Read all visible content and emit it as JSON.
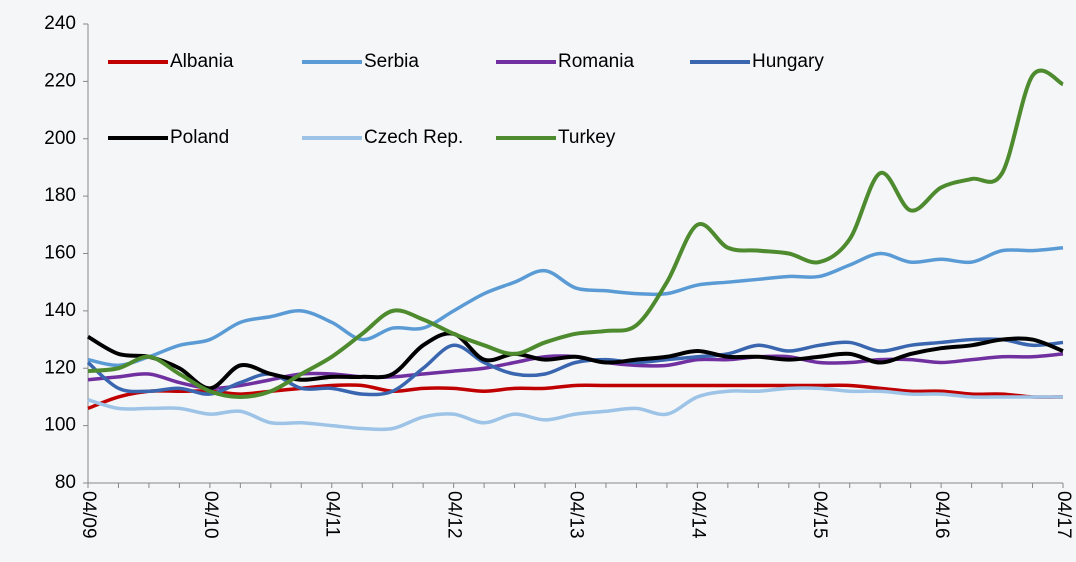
{
  "chart_data": {
    "type": "line",
    "categories": [
      "04/09",
      null,
      null,
      null,
      "04/10",
      null,
      null,
      null,
      "04/11",
      null,
      null,
      null,
      "04/12",
      null,
      null,
      null,
      "04/13",
      null,
      null,
      null,
      "04/14",
      null,
      null,
      null,
      "04/15",
      null,
      null,
      null,
      "04/16",
      null,
      null,
      null,
      "04/17"
    ],
    "series": [
      {
        "name": "Albania",
        "color": "#c00000",
        "values": [
          106,
          110,
          112,
          112,
          112,
          111,
          112,
          113,
          114,
          114,
          112,
          113,
          113,
          112,
          113,
          113,
          114,
          114,
          114,
          114,
          114,
          114,
          114,
          114,
          114,
          114,
          113,
          112,
          112,
          111,
          111,
          110,
          110
        ]
      },
      {
        "name": "Serbia",
        "color": "#5b9bd5",
        "values": [
          123,
          121,
          124,
          128,
          130,
          136,
          138,
          140,
          136,
          130,
          134,
          134,
          140,
          146,
          150,
          154,
          148,
          147,
          146,
          146,
          149,
          150,
          151,
          152,
          152,
          156,
          160,
          157,
          158,
          157,
          161,
          161,
          162
        ]
      },
      {
        "name": "Romania",
        "color": "#7030a0",
        "values": [
          116,
          117,
          118,
          115,
          113,
          114,
          116,
          118,
          118,
          117,
          117,
          118,
          119,
          120,
          122,
          124,
          124,
          122,
          121,
          121,
          123,
          123,
          124,
          124,
          122,
          122,
          123,
          123,
          122,
          123,
          124,
          124,
          125
        ]
      },
      {
        "name": "Hungary",
        "color": "#3a66b0",
        "values": [
          122,
          113,
          112,
          113,
          111,
          115,
          118,
          113,
          113,
          111,
          112,
          120,
          128,
          122,
          118,
          118,
          122,
          123,
          122,
          123,
          124,
          125,
          128,
          126,
          128,
          129,
          126,
          128,
          129,
          130,
          130,
          128,
          129
        ]
      },
      {
        "name": "Poland",
        "color": "#000000",
        "values": [
          131,
          125,
          124,
          120,
          113,
          121,
          118,
          116,
          117,
          117,
          118,
          128,
          132,
          123,
          125,
          123,
          124,
          122,
          123,
          124,
          126,
          124,
          124,
          123,
          124,
          125,
          122,
          125,
          127,
          128,
          130,
          130,
          126
        ]
      },
      {
        "name": "Czech Rep.",
        "color": "#9dc3e6",
        "values": [
          109,
          106,
          106,
          106,
          104,
          105,
          101,
          101,
          100,
          99,
          99,
          103,
          104,
          101,
          104,
          102,
          104,
          105,
          106,
          104,
          110,
          112,
          112,
          113,
          113,
          112,
          112,
          111,
          111,
          110,
          110,
          110,
          110
        ]
      },
      {
        "name": "Turkey",
        "color": "#4e8a2e",
        "values": [
          119,
          120,
          124,
          118,
          112,
          110,
          112,
          118,
          124,
          132,
          140,
          137,
          132,
          128,
          125,
          129,
          132,
          133,
          135,
          150,
          170,
          162,
          161,
          160,
          157,
          165,
          188,
          175,
          183,
          186,
          188,
          222,
          219
        ]
      }
    ],
    "ylim": [
      80,
      240
    ],
    "yticks": [
      80,
      100,
      120,
      140,
      160,
      180,
      200,
      220,
      240
    ]
  }
}
